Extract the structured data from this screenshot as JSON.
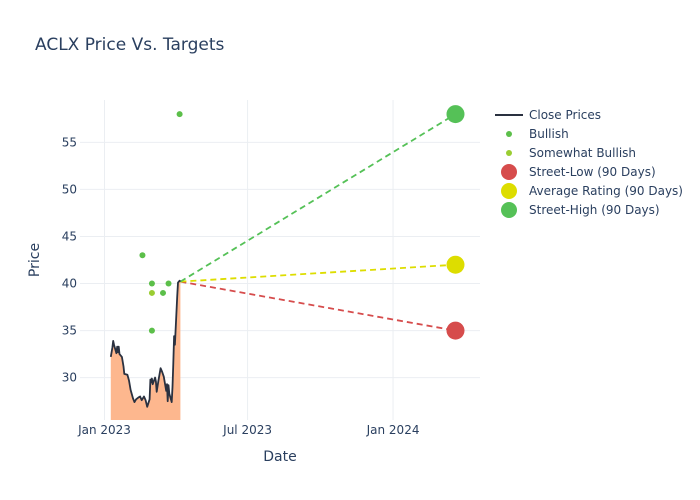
{
  "chart_data": {
    "type": "line",
    "title": "ACLX Price Vs. Targets",
    "xlabel": "Date",
    "ylabel": "Price",
    "xlim": [
      "2022-12-01",
      "2024-04-20"
    ],
    "ylim": [
      25.5,
      59.5
    ],
    "x_ticks": [
      {
        "date": "2023-01-01",
        "label": "Jan 2023"
      },
      {
        "date": "2023-07-01",
        "label": "Jul 2023"
      },
      {
        "date": "2024-01-01",
        "label": "Jan 2024"
      }
    ],
    "y_ticks": [
      30,
      35,
      40,
      45,
      50,
      55
    ],
    "grid": true,
    "legend_position": "right",
    "close_prices": {
      "name": "Close Prices",
      "color": "#2a3140",
      "fill_color": "#fdb78e",
      "points": [
        [
          "2023-01-09",
          32.2
        ],
        [
          "2023-01-11",
          33.2
        ],
        [
          "2023-01-12",
          33.9
        ],
        [
          "2023-01-13",
          33.5
        ],
        [
          "2023-01-16",
          32.6
        ],
        [
          "2023-01-17",
          33.3
        ],
        [
          "2023-01-18",
          32.7
        ],
        [
          "2023-01-19",
          33.3
        ],
        [
          "2023-01-20",
          32.5
        ],
        [
          "2023-01-23",
          32.2
        ],
        [
          "2023-01-25",
          31.2
        ],
        [
          "2023-01-26",
          30.4
        ],
        [
          "2023-01-30",
          30.3
        ],
        [
          "2023-02-01",
          29.7
        ],
        [
          "2023-02-03",
          28.7
        ],
        [
          "2023-02-06",
          27.8
        ],
        [
          "2023-02-08",
          27.4
        ],
        [
          "2023-02-10",
          27.7
        ],
        [
          "2023-02-13",
          27.9
        ],
        [
          "2023-02-15",
          28.0
        ],
        [
          "2023-02-17",
          27.6
        ],
        [
          "2023-02-20",
          28.0
        ],
        [
          "2023-02-22",
          27.6
        ],
        [
          "2023-02-24",
          26.9
        ],
        [
          "2023-02-27",
          27.7
        ],
        [
          "2023-02-28",
          29.8
        ],
        [
          "2023-03-01",
          29.5
        ],
        [
          "2023-03-02",
          29.9
        ],
        [
          "2023-03-03",
          29.3
        ],
        [
          "2023-03-06",
          30.0
        ],
        [
          "2023-03-07",
          29.6
        ],
        [
          "2023-03-08",
          28.5
        ],
        [
          "2023-03-10",
          29.6
        ],
        [
          "2023-03-13",
          31.0
        ],
        [
          "2023-03-15",
          30.6
        ],
        [
          "2023-03-17",
          30.1
        ],
        [
          "2023-03-20",
          28.6
        ],
        [
          "2023-03-21",
          29.3
        ],
        [
          "2023-03-22",
          27.5
        ],
        [
          "2023-03-23",
          29.2
        ],
        [
          "2023-03-24",
          28.3
        ],
        [
          "2023-03-27",
          27.4
        ],
        [
          "2023-03-28",
          29.0
        ],
        [
          "2023-03-29",
          31.5
        ],
        [
          "2023-03-30",
          34.4
        ],
        [
          "2023-03-31",
          33.5
        ],
        [
          "2023-04-03",
          38.6
        ],
        [
          "2023-04-04",
          40.1
        ],
        [
          "2023-04-06",
          40.3
        ],
        [
          "2023-04-07",
          40.2
        ]
      ]
    },
    "series": [
      {
        "name": "Bullish",
        "color": "#5cbf4a",
        "points": [
          [
            "2023-02-18",
            43
          ],
          [
            "2023-03-02",
            40
          ],
          [
            "2023-03-02",
            35
          ],
          [
            "2023-03-16",
            39
          ],
          [
            "2023-03-23",
            40
          ],
          [
            "2023-04-06",
            58
          ]
        ]
      },
      {
        "name": "Somewhat Bullish",
        "color": "#9acd32",
        "points": [
          [
            "2023-03-02",
            39
          ]
        ]
      }
    ],
    "targets": [
      {
        "name": "Street-Low (90 Days)",
        "color": "#d64c4c",
        "date": "2024-03-20",
        "value": 35
      },
      {
        "name": "Average Rating (90 Days)",
        "color": "#dddd00",
        "date": "2024-03-20",
        "value": 42
      },
      {
        "name": "Street-High (90 Days)",
        "color": "#55c157",
        "date": "2024-03-20",
        "value": 58
      }
    ]
  }
}
